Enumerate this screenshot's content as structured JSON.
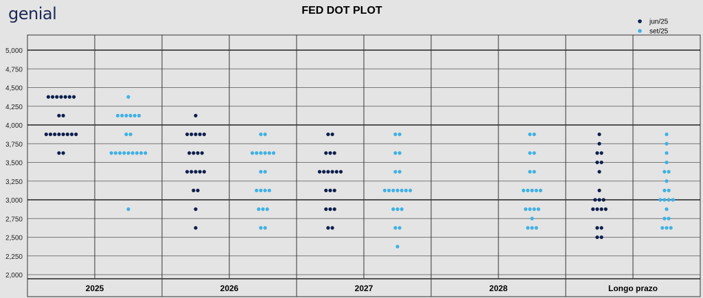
{
  "brand": {
    "logo_text": "genial"
  },
  "chart_data": {
    "type": "scatter",
    "title": "FED DOT PLOT",
    "xlabel": "",
    "ylabel": "",
    "ylim": [
      2.0,
      5.0
    ],
    "yticks": [
      5.0,
      4.75,
      4.5,
      4.25,
      4.0,
      3.75,
      3.5,
      3.25,
      3.0,
      2.75,
      2.5,
      2.25,
      2.0
    ],
    "ytick_labels": [
      "5,000",
      "4,750",
      "4,500",
      "4,250",
      "4,000",
      "3,750",
      "3,500",
      "3,250",
      "3,000",
      "2,750",
      "2,500",
      "2,250",
      "2,000"
    ],
    "categories": [
      "2025",
      "2026",
      "2027",
      "2028",
      "Longo prazo"
    ],
    "legend_position": "top-right",
    "series": [
      {
        "name": "jun/25",
        "color": "#0e1f4d",
        "dots": {
          "2025": [
            [
              4.375,
              7
            ],
            [
              4.125,
              2
            ],
            [
              3.875,
              8
            ],
            [
              3.625,
              2
            ]
          ],
          "2026": [
            [
              4.125,
              1
            ],
            [
              3.875,
              5
            ],
            [
              3.625,
              4
            ],
            [
              3.375,
              5
            ],
            [
              3.125,
              2
            ],
            [
              2.875,
              1
            ],
            [
              2.625,
              1
            ]
          ],
          "2027": [
            [
              3.875,
              2
            ],
            [
              3.625,
              3
            ],
            [
              3.375,
              6
            ],
            [
              3.125,
              3
            ],
            [
              2.875,
              3
            ],
            [
              2.625,
              2
            ]
          ],
          "2028": [],
          "Longo prazo": [
            [
              3.875,
              1
            ],
            [
              3.75,
              1
            ],
            [
              3.625,
              2
            ],
            [
              3.5,
              2
            ],
            [
              3.375,
              1
            ],
            [
              3.125,
              1
            ],
            [
              3.0,
              3
            ],
            [
              2.875,
              4
            ],
            [
              2.625,
              2
            ],
            [
              2.5,
              2
            ]
          ]
        }
      },
      {
        "name": "set/25",
        "color": "#3fb1e4",
        "dots": {
          "2025": [
            [
              4.375,
              1
            ],
            [
              4.125,
              6
            ],
            [
              3.875,
              2
            ],
            [
              3.625,
              9
            ],
            [
              2.875,
              1
            ]
          ],
          "2026": [
            [
              3.875,
              2
            ],
            [
              3.625,
              6
            ],
            [
              3.375,
              2
            ],
            [
              3.125,
              4
            ],
            [
              2.875,
              3
            ],
            [
              2.625,
              2
            ]
          ],
          "2027": [
            [
              3.875,
              2
            ],
            [
              3.625,
              2
            ],
            [
              3.375,
              2
            ],
            [
              3.125,
              7
            ],
            [
              2.875,
              3
            ],
            [
              2.625,
              2
            ],
            [
              2.375,
              1
            ]
          ],
          "2028": [
            [
              3.875,
              2
            ],
            [
              3.625,
              2
            ],
            [
              3.375,
              2
            ],
            [
              3.125,
              5
            ],
            [
              2.875,
              4
            ],
            [
              2.75,
              1
            ],
            [
              2.625,
              3
            ]
          ],
          "Longo prazo": [
            [
              3.875,
              1
            ],
            [
              3.75,
              1
            ],
            [
              3.625,
              1
            ],
            [
              3.5,
              1
            ],
            [
              3.375,
              2
            ],
            [
              3.25,
              1
            ],
            [
              3.125,
              2
            ],
            [
              3.0,
              4
            ],
            [
              2.875,
              1
            ],
            [
              2.75,
              2
            ],
            [
              2.625,
              3
            ]
          ]
        }
      }
    ]
  }
}
